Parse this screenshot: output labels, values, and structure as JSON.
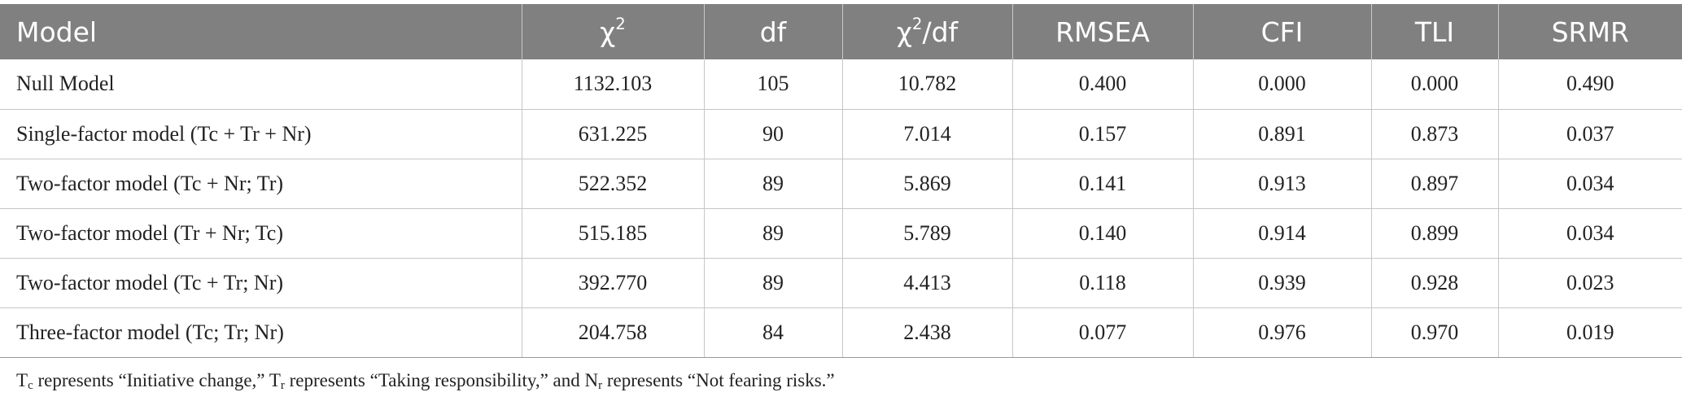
{
  "table": {
    "headers": [
      {
        "label": "Model"
      },
      {
        "label": "χ",
        "sup": "2"
      },
      {
        "label": "df"
      },
      {
        "label": "χ",
        "sup": "2",
        "suffix": "/df"
      },
      {
        "label": "RMSEA"
      },
      {
        "label": "CFI"
      },
      {
        "label": "TLI"
      },
      {
        "label": "SRMR"
      }
    ],
    "rows": [
      [
        "Null Model",
        "1132.103",
        "105",
        "10.782",
        "0.400",
        "0.000",
        "0.000",
        "0.490"
      ],
      [
        "Single-factor model (Tc + Tr + Nr)",
        "631.225",
        "90",
        "7.014",
        "0.157",
        "0.891",
        "0.873",
        "0.037"
      ],
      [
        "Two-factor model (Tc + Nr; Tr)",
        "522.352",
        "89",
        "5.869",
        "0.141",
        "0.913",
        "0.897",
        "0.034"
      ],
      [
        "Two-factor model (Tr + Nr; Tc)",
        "515.185",
        "89",
        "5.789",
        "0.140",
        "0.914",
        "0.899",
        "0.034"
      ],
      [
        "Two-factor model (Tc + Tr; Nr)",
        "392.770",
        "89",
        "4.413",
        "0.118",
        "0.939",
        "0.928",
        "0.023"
      ],
      [
        "Three-factor model (Tc; Tr; Nr)",
        "204.758",
        "84",
        "2.438",
        "0.077",
        "0.976",
        "0.970",
        "0.019"
      ]
    ]
  },
  "footnote": {
    "t1": "T",
    "s1": "c",
    "d1": " represents “Initiative change,” ",
    "t2": "T",
    "s2": "r",
    "d2": " represents “Taking responsibility,” and ",
    "t3": "N",
    "s3": "r",
    "d3": " represents “Not fearing risks.”"
  },
  "colors": {
    "header_bg": "#808080",
    "header_text": "#ffffff",
    "grid": "#c6c6c6"
  }
}
